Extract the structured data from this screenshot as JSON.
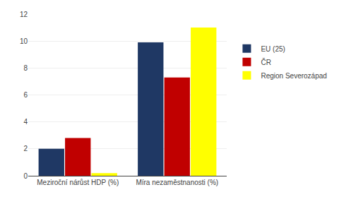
{
  "chart_data": {
    "type": "bar",
    "categories": [
      "Meziroční nárůst HDP (%)",
      "Míra nezaměstnanosti (%)"
    ],
    "series": [
      {
        "name": "EU (25)",
        "color": "#1F3864",
        "values": [
          2.0,
          9.9
        ]
      },
      {
        "name": "ČR",
        "color": "#C00000",
        "values": [
          2.8,
          7.3
        ]
      },
      {
        "name": "Region Severozápad",
        "color": "#FFFF00",
        "values": [
          0.2,
          11.0
        ]
      }
    ],
    "ylim": [
      0,
      12
    ],
    "yticks": [
      0,
      2,
      4,
      6,
      8,
      10,
      12
    ],
    "grid": true,
    "legend": "right"
  }
}
